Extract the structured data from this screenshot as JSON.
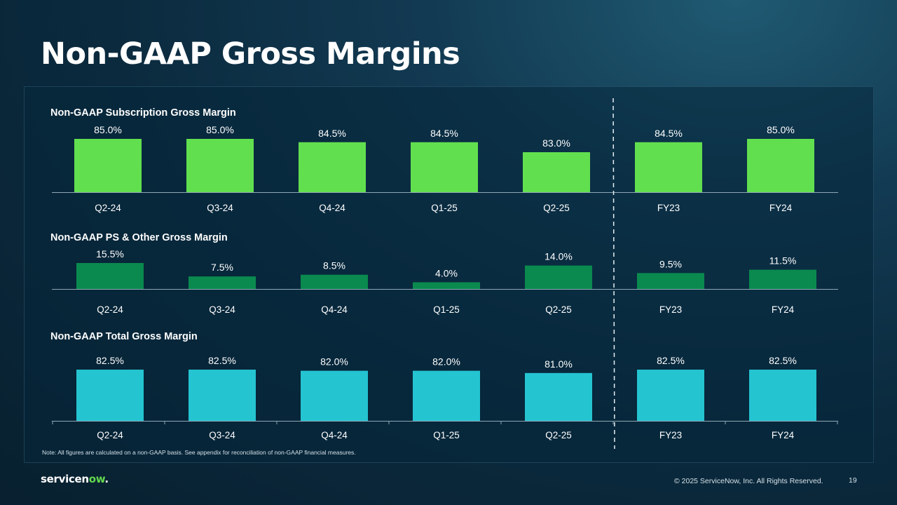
{
  "page": {
    "title": "Non-GAAP Gross Margins",
    "note": "Note: All figures are calculated on a non-GAAP basis. See appendix for reconciliation of non-GAAP financial measures.",
    "logo": {
      "text": "servicen",
      "accent": "ow",
      "suffix": "."
    },
    "copyright": "© 2025 ServiceNow, Inc. All Rights Reserved.",
    "page_number": "19"
  },
  "chart_data": [
    {
      "type": "bar",
      "title": "Non-GAAP Subscription Gross Margin",
      "categories": [
        "Q2-24",
        "Q3-24",
        "Q4-24",
        "Q1-25",
        "Q2-25",
        "FY23",
        "FY24"
      ],
      "values": [
        85.0,
        85.0,
        84.5,
        84.5,
        83.0,
        84.5,
        85.0
      ],
      "labels": [
        "85.0%",
        "85.0%",
        "84.5%",
        "84.5%",
        "83.0%",
        "84.5%",
        "85.0%"
      ],
      "ylim": [
        77.0,
        85.0
      ],
      "color": "#62df4f"
    },
    {
      "type": "bar",
      "title": "Non-GAAP PS & Other Gross Margin",
      "categories": [
        "Q2-24",
        "Q3-24",
        "Q4-24",
        "Q1-25",
        "Q2-25",
        "FY23",
        "FY24"
      ],
      "values": [
        15.5,
        7.5,
        8.5,
        4.0,
        14.0,
        9.5,
        11.5
      ],
      "labels": [
        "15.5%",
        "7.5%",
        "8.5%",
        "4.0%",
        "14.0%",
        "9.5%",
        "11.5%"
      ],
      "ylim": [
        0,
        15.5
      ],
      "color": "#0a8a4e"
    },
    {
      "type": "bar",
      "title": "Non-GAAP Total Gross Margin",
      "categories": [
        "Q2-24",
        "Q3-24",
        "Q4-24",
        "Q1-25",
        "Q2-25",
        "FY23",
        "FY24"
      ],
      "values": [
        82.5,
        82.5,
        82.0,
        82.0,
        81.0,
        82.5,
        82.5
      ],
      "labels": [
        "82.5%",
        "82.5%",
        "82.0%",
        "82.0%",
        "81.0%",
        "82.5%",
        "82.5%"
      ],
      "ylim": [
        59.8,
        82.5
      ],
      "color": "#24c4d1"
    }
  ]
}
